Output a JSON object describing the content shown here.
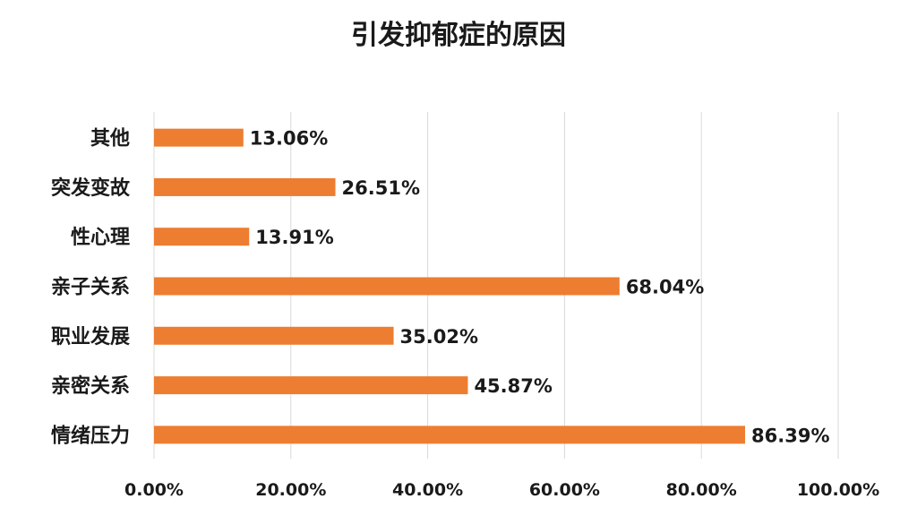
{
  "chart_data": {
    "type": "bar",
    "orientation": "horizontal",
    "title": "引发抑郁症的原因",
    "categories": [
      "其他",
      "突发变故",
      "性心理",
      "亲子关系",
      "职业发展",
      "亲密关系",
      "情绪压力"
    ],
    "values": [
      13.06,
      26.51,
      13.91,
      68.04,
      35.02,
      45.87,
      86.39
    ],
    "value_labels": [
      "13.06%",
      "26.51%",
      "13.91%",
      "68.04%",
      "35.02%",
      "45.87%",
      "86.39%"
    ],
    "xlim": [
      0,
      100
    ],
    "xticks": [
      0,
      20,
      40,
      60,
      80,
      100
    ],
    "xtick_labels": [
      "0.00%",
      "20.00%",
      "40.00%",
      "60.00%",
      "80.00%",
      "100.00%"
    ],
    "xlabel": "",
    "ylabel": "",
    "grid": "vertical",
    "bar_color": "#ED7D31",
    "grid_color": "#D9D9D9"
  }
}
